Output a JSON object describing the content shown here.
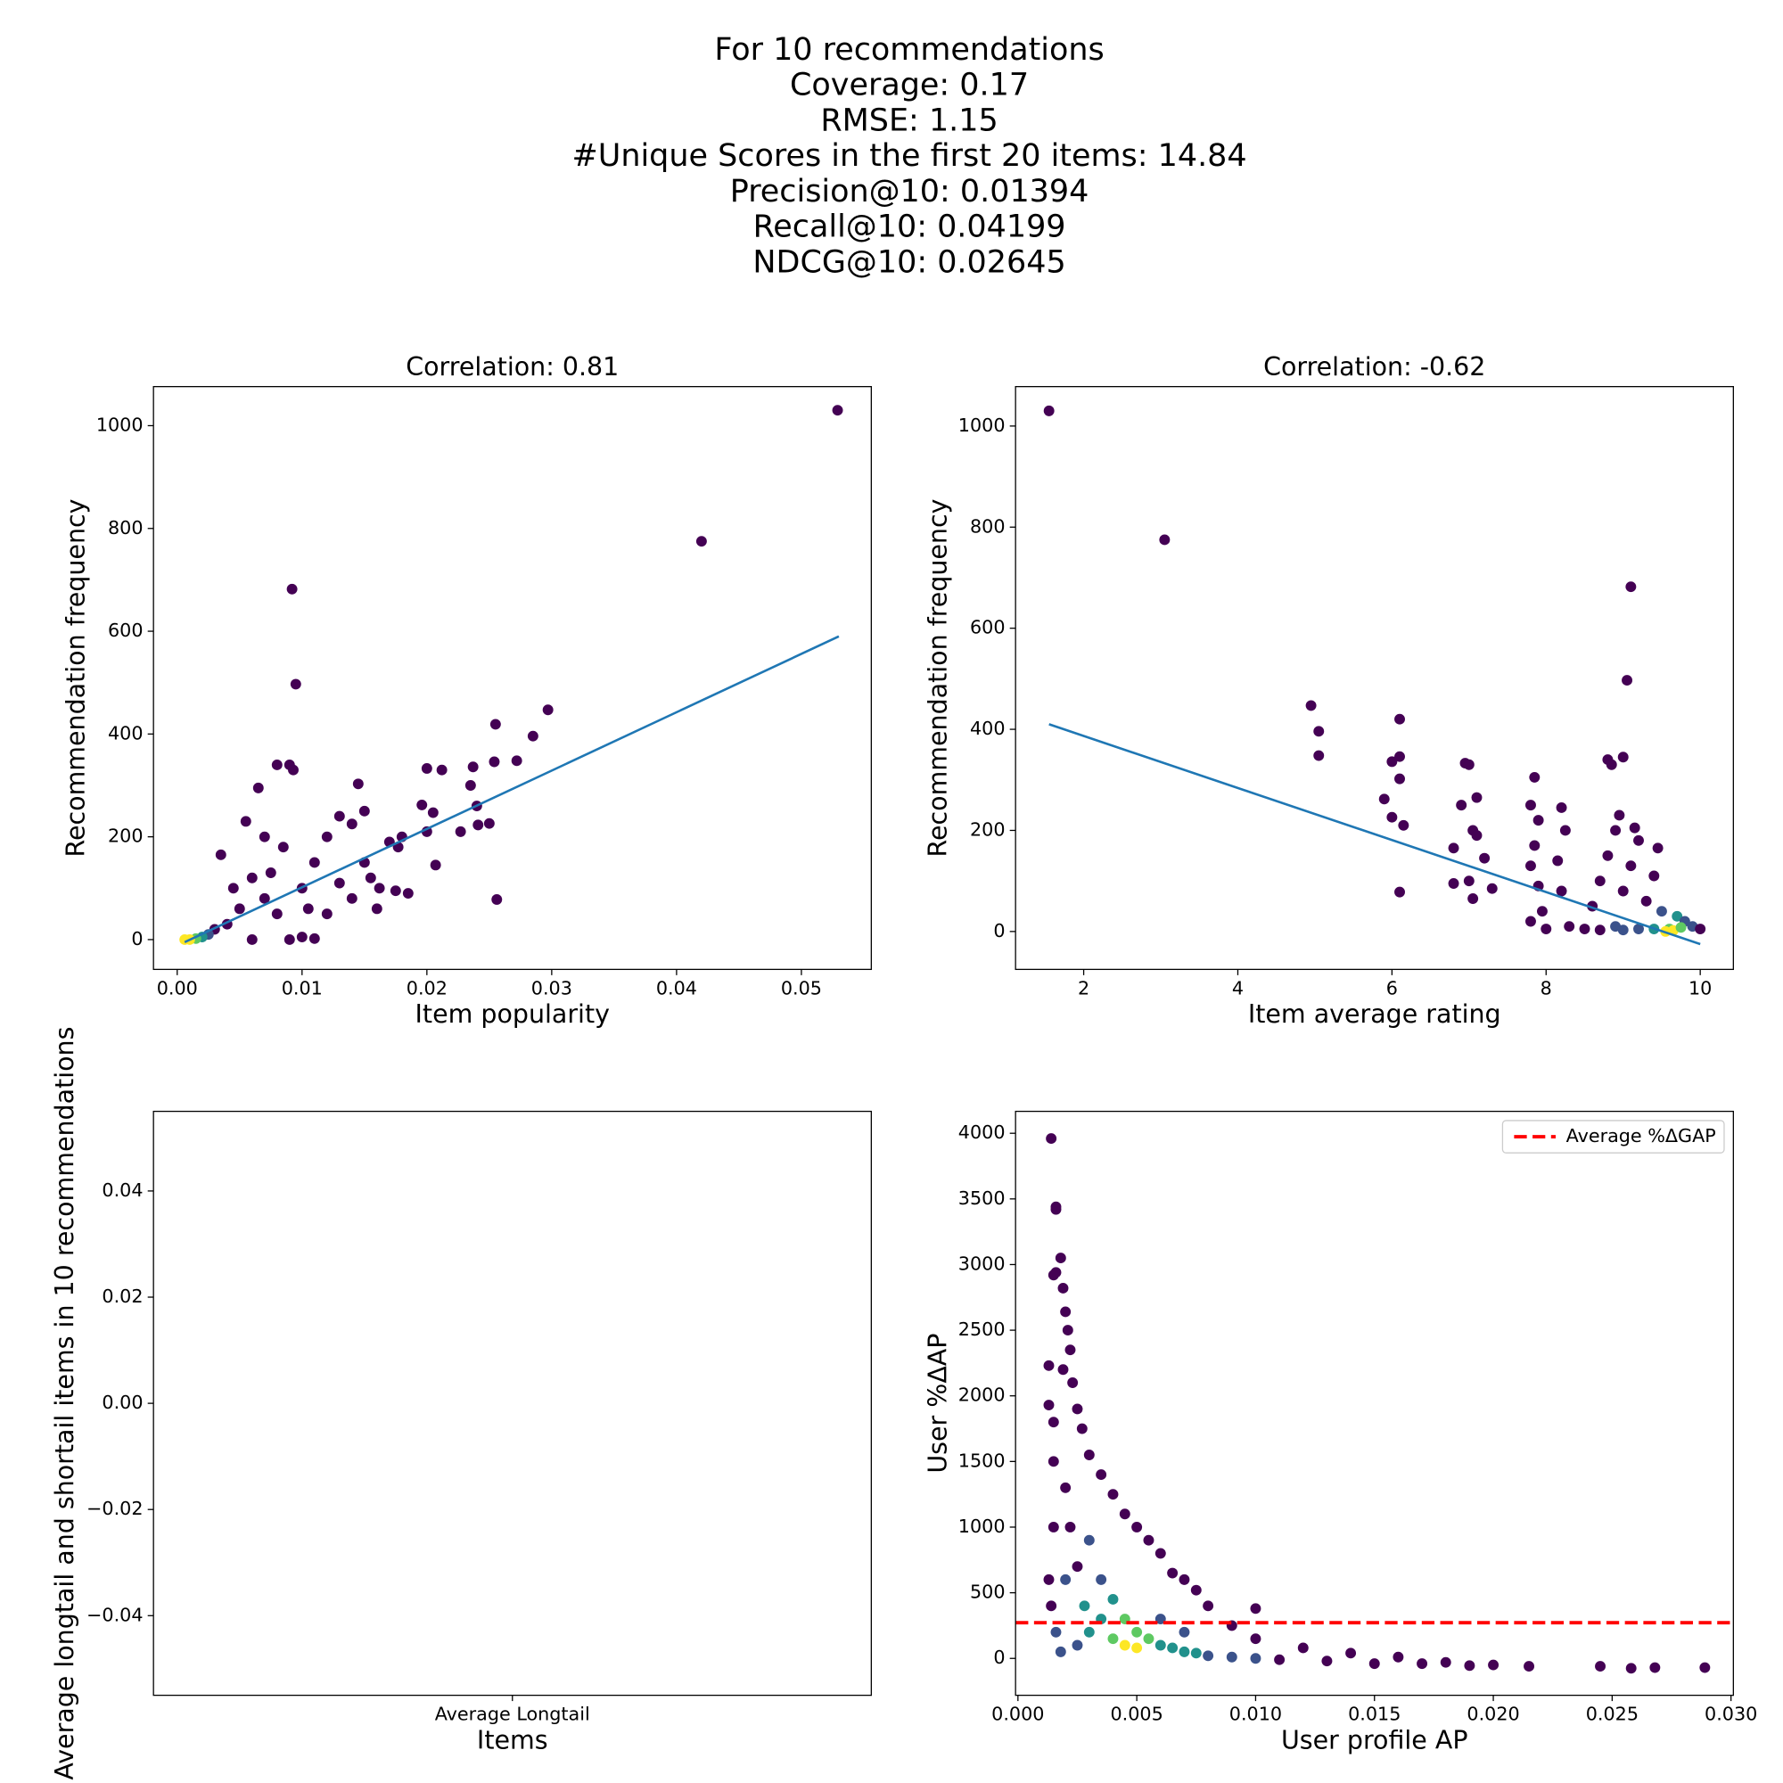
{
  "suptitle": [
    "For 10 recommendations",
    "Coverage: 0.17",
    "RMSE: 1.15",
    "#Unique Scores in the first 20 items: 14.84",
    "Precision@10: 0.01394",
    "Recall@10: 0.04199",
    "NDCG@10: 0.02645"
  ],
  "chart_data": [
    {
      "type": "scatter",
      "title": "Correlation: 0.81",
      "xlabel": "Item popularity",
      "ylabel": "Recommendation frequency",
      "xlim": [
        -0.0019,
        0.0556
      ],
      "ylim": [
        -58,
        1076
      ],
      "xticks": [
        {
          "value": 0,
          "label": "0.00"
        },
        0.01,
        0.02,
        0.03,
        0.04,
        0.05
      ],
      "yticks": [
        0,
        200,
        400,
        600,
        800,
        1000
      ],
      "x": [
        0.0529,
        0.042,
        0.0092,
        0.0095,
        0.0297,
        0.0285,
        0.0255,
        0.0254,
        0.0272,
        0.0237,
        0.0235,
        0.024,
        0.0241,
        0.025,
        0.0256,
        0.02,
        0.0212,
        0.0196,
        0.0205,
        0.02,
        0.0227,
        0.0207,
        0.0177,
        0.017,
        0.018,
        0.0162,
        0.0175,
        0.015,
        0.0145,
        0.015,
        0.014,
        0.013,
        0.012,
        0.011,
        0.01,
        0.009,
        0.0093,
        0.008,
        0.0065,
        0.0055,
        0.007,
        0.0085,
        0.0035,
        0.006,
        0.007,
        0.008,
        0.005,
        0.004,
        0.003,
        0.0025,
        0.002,
        0.0015,
        0.001,
        0.0006,
        0.012,
        0.014,
        0.016,
        0.01,
        0.011,
        0.009,
        0.006,
        0.0045,
        0.0075,
        0.0105,
        0.013,
        0.0155,
        0.0185
      ],
      "y": [
        1030,
        775,
        682,
        497,
        447,
        396,
        419,
        346,
        348,
        336,
        300,
        260,
        223,
        226,
        78,
        333,
        330,
        262,
        247,
        210,
        210,
        145,
        180,
        190,
        200,
        100,
        95,
        150,
        303,
        250,
        225,
        240,
        200,
        150,
        100,
        340,
        330,
        340,
        295,
        230,
        200,
        180,
        165,
        120,
        80,
        50,
        60,
        30,
        20,
        10,
        5,
        2,
        0,
        0,
        50,
        80,
        60,
        5,
        2,
        0,
        0,
        100,
        130,
        60,
        110,
        120,
        90
      ],
      "colors": [
        "#440154",
        "#440154",
        "#440154",
        "#440154",
        "#440154",
        "#440154",
        "#440154",
        "#440154",
        "#440154",
        "#440154",
        "#440154",
        "#440154",
        "#440154",
        "#440154",
        "#440154",
        "#440154",
        "#440154",
        "#440154",
        "#440154",
        "#440154",
        "#440154",
        "#440154",
        "#440154",
        "#440154",
        "#440154",
        "#440154",
        "#440154",
        "#440154",
        "#440154",
        "#440154",
        "#440154",
        "#440154",
        "#440154",
        "#440154",
        "#440154",
        "#440154",
        "#440154",
        "#440154",
        "#440154",
        "#440154",
        "#440154",
        "#440154",
        "#440154",
        "#440154",
        "#440154",
        "#440154",
        "#440154",
        "#440154",
        "#440154",
        "#3b528b",
        "#21918c",
        "#5ec962",
        "#fde725",
        "#fde725",
        "#440154",
        "#440154",
        "#440154",
        "#440154",
        "#440154",
        "#440154",
        "#440154",
        "#440154",
        "#440154",
        "#440154",
        "#440154",
        "#440154",
        "#440154"
      ],
      "fit": {
        "x": [
          0.0006,
          0.053
        ],
        "y": [
          -5,
          590
        ],
        "color": "#1f77b4"
      }
    },
    {
      "type": "scatter",
      "title": "Correlation: -0.62",
      "xlabel": "Item average rating",
      "ylabel": "Recommendation frequency",
      "xlim": [
        1.116,
        10.43
      ],
      "ylim": [
        -75,
        1078
      ],
      "xticks": [
        2,
        4,
        6,
        8,
        10
      ],
      "yticks": [
        0,
        200,
        400,
        600,
        800,
        1000
      ],
      "x": [
        1.55,
        3.05,
        9.1,
        9.05,
        4.95,
        5.05,
        5.05,
        6.1,
        6.1,
        6.0,
        6.1,
        5.9,
        6.0,
        6.15,
        6.1,
        6.95,
        7.0,
        6.9,
        7.1,
        7.05,
        7.1,
        6.8,
        6.8,
        7.05,
        7.0,
        7.2,
        7.3,
        7.85,
        7.8,
        7.9,
        7.85,
        7.8,
        7.9,
        7.95,
        7.8,
        8.2,
        8.25,
        8.15,
        8.2,
        8.3,
        8.0,
        8.5,
        8.8,
        8.85,
        9.0,
        8.95,
        8.9,
        9.15,
        9.2,
        8.8,
        9.1,
        8.7,
        9.0,
        8.6,
        9.3,
        9.5,
        9.45,
        9.4,
        9.7,
        9.8,
        9.9,
        10.0,
        9.6,
        9.4,
        9.2,
        9.55,
        9.65,
        9.75,
        8.9,
        9.0,
        8.7
      ],
      "y": [
        1030,
        775,
        682,
        497,
        447,
        396,
        348,
        420,
        346,
        336,
        302,
        262,
        226,
        210,
        78,
        333,
        330,
        250,
        265,
        200,
        190,
        165,
        95,
        65,
        100,
        145,
        85,
        305,
        250,
        220,
        170,
        130,
        90,
        40,
        20,
        245,
        200,
        140,
        80,
        10,
        5,
        5,
        340,
        330,
        345,
        230,
        200,
        205,
        180,
        150,
        130,
        100,
        80,
        50,
        60,
        40,
        165,
        110,
        30,
        20,
        10,
        5,
        5,
        5,
        5,
        0,
        2,
        8,
        10,
        3,
        3
      ],
      "colors": [
        "#440154",
        "#440154",
        "#440154",
        "#440154",
        "#440154",
        "#440154",
        "#440154",
        "#440154",
        "#440154",
        "#440154",
        "#440154",
        "#440154",
        "#440154",
        "#440154",
        "#440154",
        "#440154",
        "#440154",
        "#440154",
        "#440154",
        "#440154",
        "#440154",
        "#440154",
        "#440154",
        "#440154",
        "#440154",
        "#440154",
        "#440154",
        "#440154",
        "#440154",
        "#440154",
        "#440154",
        "#440154",
        "#440154",
        "#440154",
        "#440154",
        "#440154",
        "#440154",
        "#440154",
        "#440154",
        "#440154",
        "#440154",
        "#440154",
        "#440154",
        "#440154",
        "#440154",
        "#440154",
        "#440154",
        "#440154",
        "#440154",
        "#440154",
        "#440154",
        "#440154",
        "#440154",
        "#440154",
        "#440154",
        "#3b528b",
        "#440154",
        "#440154",
        "#21918c",
        "#3b528b",
        "#3b528b",
        "#440154",
        "#5ec962",
        "#21918c",
        "#3b528b",
        "#fde725",
        "#fde725",
        "#5ec962",
        "#3b528b",
        "#3b528b",
        "#440154"
      ],
      "fit": {
        "x": [
          1.55,
          10.0
        ],
        "y": [
          410,
          -25
        ],
        "color": "#1f77b4"
      }
    },
    {
      "type": "bar",
      "xlabel": "Items",
      "ylabel": "Average longtail and shortail items in 10 recommendations",
      "categories": [
        "Average Longtail"
      ],
      "values": [
        0
      ],
      "color": "#1f77b4",
      "ylim": [
        -0.055,
        0.055
      ],
      "yticks": [
        {
          "value": -0.04,
          "label": "−0.04"
        },
        {
          "value": -0.02,
          "label": "−0.02"
        },
        {
          "value": 0,
          "label": "0.00"
        },
        0.02,
        0.04
      ]
    },
    {
      "type": "scatter",
      "xlabel": "User profile AP",
      "ylabel": "User %ΔAP",
      "xlim": [
        -0.0001,
        0.0301
      ],
      "ylim": [
        -281,
        4167
      ],
      "xticks": [
        {
          "value": 0,
          "label": "0.000"
        },
        0.005,
        {
          "value": 0.01,
          "label": "0.010"
        },
        0.015,
        {
          "value": 0.02,
          "label": "0.020"
        },
        0.025,
        {
          "value": 0.03,
          "label": "0.030"
        }
      ],
      "yticks": [
        0,
        500,
        1000,
        1500,
        2000,
        2500,
        3000,
        3500,
        4000
      ],
      "x": [
        0.0014,
        0.0016,
        0.0016,
        0.0018,
        0.0016,
        0.0015,
        0.0019,
        0.002,
        0.0021,
        0.0022,
        0.0019,
        0.0013,
        0.0013,
        0.0015,
        0.0023,
        0.0025,
        0.0027,
        0.003,
        0.0035,
        0.004,
        0.0045,
        0.005,
        0.0055,
        0.006,
        0.0065,
        0.007,
        0.0075,
        0.008,
        0.01,
        0.009,
        0.01,
        0.012,
        0.014,
        0.016,
        0.018,
        0.02,
        0.0215,
        0.0245,
        0.0258,
        0.0268,
        0.0289,
        0.0015,
        0.0015,
        0.0013,
        0.0014,
        0.0016,
        0.0018,
        0.002,
        0.0022,
        0.0025,
        0.002,
        0.003,
        0.0035,
        0.0028,
        0.004,
        0.0045,
        0.005,
        0.0055,
        0.006,
        0.0045,
        0.005,
        0.004,
        0.0065,
        0.007,
        0.0075,
        0.008,
        0.009,
        0.01,
        0.011,
        0.013,
        0.015,
        0.017,
        0.019,
        0.003,
        0.0035,
        0.0025,
        0.006,
        0.007
      ],
      "y": [
        3960,
        3440,
        3420,
        3050,
        2940,
        2920,
        2820,
        2640,
        2500,
        2350,
        2200,
        2230,
        1930,
        1800,
        2100,
        1900,
        1750,
        1550,
        1400,
        1250,
        1100,
        1000,
        900,
        800,
        650,
        600,
        520,
        400,
        380,
        250,
        150,
        80,
        40,
        10,
        -30,
        -50,
        -60,
        -60,
        -75,
        -70,
        -70,
        1500,
        1000,
        600,
        400,
        200,
        50,
        1300,
        1000,
        700,
        600,
        900,
        600,
        400,
        450,
        300,
        200,
        150,
        100,
        100,
        80,
        150,
        80,
        50,
        40,
        20,
        10,
        0,
        -10,
        -20,
        -40,
        -40,
        -55,
        200,
        300,
        100,
        300,
        200
      ],
      "colors": [
        "#440154",
        "#440154",
        "#440154",
        "#440154",
        "#440154",
        "#440154",
        "#440154",
        "#440154",
        "#440154",
        "#440154",
        "#440154",
        "#440154",
        "#440154",
        "#440154",
        "#440154",
        "#440154",
        "#440154",
        "#440154",
        "#440154",
        "#440154",
        "#440154",
        "#440154",
        "#440154",
        "#440154",
        "#440154",
        "#440154",
        "#440154",
        "#440154",
        "#440154",
        "#440154",
        "#440154",
        "#440154",
        "#440154",
        "#440154",
        "#440154",
        "#440154",
        "#440154",
        "#440154",
        "#440154",
        "#440154",
        "#440154",
        "#440154",
        "#440154",
        "#440154",
        "#440154",
        "#3b528b",
        "#3b528b",
        "#440154",
        "#440154",
        "#440154",
        "#3b528b",
        "#3b528b",
        "#3b528b",
        "#21918c",
        "#21918c",
        "#5ec962",
        "#5ec962",
        "#5ec962",
        "#21918c",
        "#fde725",
        "#fde725",
        "#5ec962",
        "#21918c",
        "#21918c",
        "#21918c",
        "#3b528b",
        "#3b528b",
        "#3b528b",
        "#440154",
        "#440154",
        "#440154",
        "#440154",
        "#440154",
        "#21918c",
        "#21918c",
        "#3b528b",
        "#3b528b",
        "#3b528b"
      ],
      "hline": {
        "name": "Average %ΔGAP",
        "value": 272,
        "color": "red",
        "style": "dashed"
      },
      "legend": "upper right"
    }
  ]
}
